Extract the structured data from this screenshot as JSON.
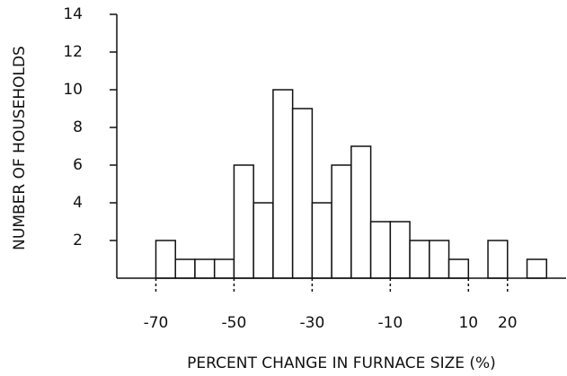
{
  "chart_data": {
    "type": "histogram",
    "xlabel": "PERCENT CHANGE IN FURNACE SIZE (%)",
    "ylabel": "NUMBER OF HOUSEHOLDS",
    "bins": [
      -70,
      -65,
      -60,
      -55,
      -50,
      -45,
      -40,
      -35,
      -30,
      -25,
      -20,
      -15,
      -10,
      -5,
      0,
      5,
      10,
      15,
      20,
      25,
      30
    ],
    "values": [
      2,
      1,
      1,
      1,
      6,
      4,
      10,
      9,
      4,
      6,
      7,
      3,
      3,
      2,
      2,
      1,
      0,
      2,
      0,
      1
    ],
    "color": "#ffffff",
    "xlim": [
      -80,
      35
    ],
    "xticks": [
      -70,
      -50,
      -30,
      -10,
      10,
      20
    ],
    "ylim": [
      0,
      14
    ],
    "yticks": [
      2,
      4,
      6,
      8,
      10,
      12,
      14
    ],
    "grid": false
  }
}
